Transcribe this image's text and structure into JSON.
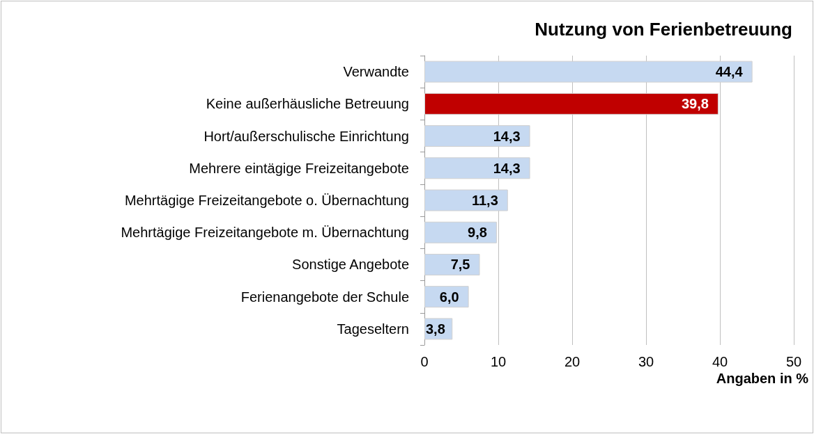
{
  "chart_data": {
    "type": "bar",
    "orientation": "horizontal",
    "title": "Nutzung von Ferienbetreuung",
    "xlabel": "Angaben in %",
    "categories": [
      "Verwandte",
      "Keine außerhäusliche Betreuung",
      "Hort/außerschulische Einrichtung",
      "Mehrere eintägige Freizeitangebote",
      "Mehrtägige Freizeitangebote o. Übernachtung",
      "Mehrtägige Freizeitangebote m. Übernachtung",
      "Sonstige Angebote",
      "Ferienangebote der Schule",
      "Tageseltern"
    ],
    "values": [
      44.4,
      39.8,
      14.3,
      14.3,
      11.3,
      9.8,
      7.5,
      6.0,
      3.8
    ],
    "value_labels": [
      "44,4",
      "39,8",
      "14,3",
      "14,3",
      "11,3",
      "9,8",
      "7,5",
      "6,0",
      "3,8"
    ],
    "colors": [
      "#c6d9f1",
      "#c00000",
      "#c6d9f1",
      "#c6d9f1",
      "#c6d9f1",
      "#c6d9f1",
      "#c6d9f1",
      "#c6d9f1",
      "#c6d9f1"
    ],
    "xlim": [
      0,
      50
    ],
    "xticks": [
      0,
      10,
      20,
      30,
      40,
      50
    ],
    "grid": "x"
  }
}
